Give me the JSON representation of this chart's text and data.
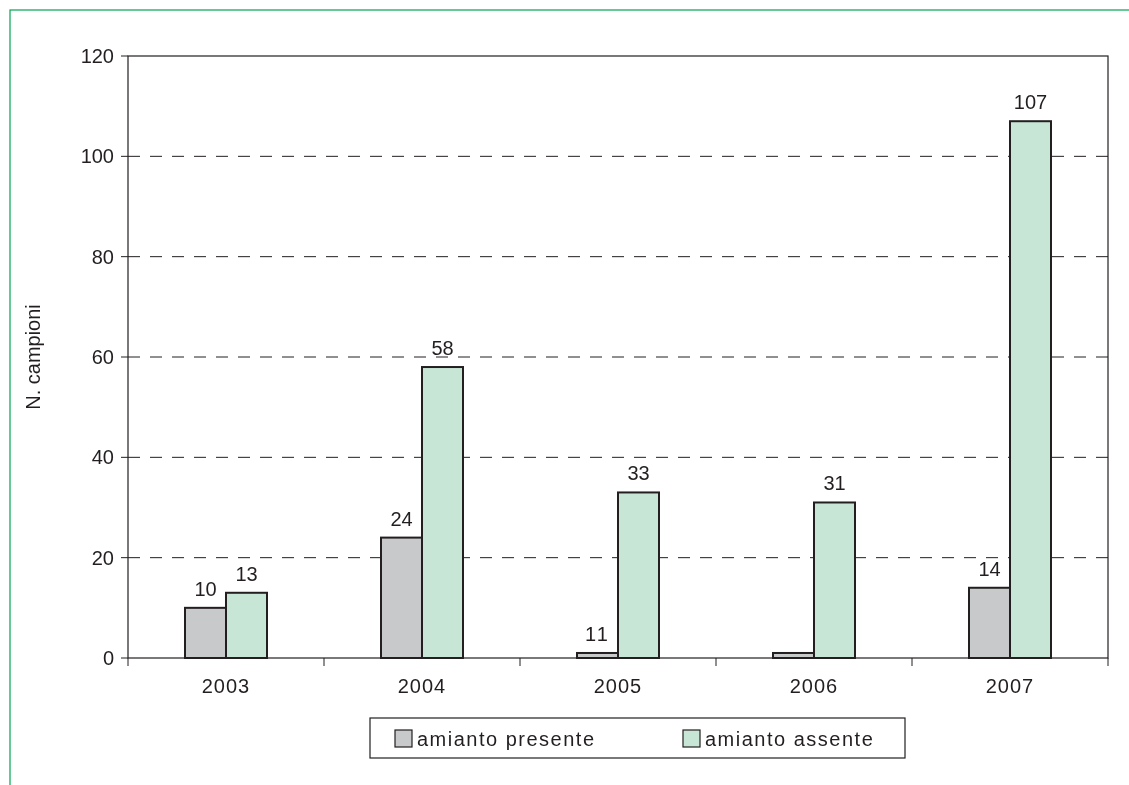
{
  "chart_data": {
    "type": "bar",
    "ylabel": "N. campioni",
    "categories": [
      "2003",
      "2004",
      "2005",
      "2006",
      "2007"
    ],
    "series": [
      {
        "name": "amianto presente",
        "color": "#c8c9cb",
        "values": [
          10,
          24,
          1,
          1,
          14
        ],
        "value_labels": [
          "10",
          "24",
          null,
          null,
          "14"
        ]
      },
      {
        "name": "amianto assente",
        "color": "#c8e6d6",
        "values": [
          13,
          58,
          33,
          31,
          107
        ],
        "value_labels": [
          "13",
          "58",
          "33",
          "31",
          "107"
        ]
      }
    ],
    "annotations": [
      {
        "text": "11",
        "x": "2005",
        "y": 1
      }
    ],
    "ylim": [
      0,
      120
    ],
    "yticks": [
      0,
      20,
      40,
      60,
      80,
      100,
      120
    ],
    "grid": "y",
    "legend": "bottom"
  }
}
